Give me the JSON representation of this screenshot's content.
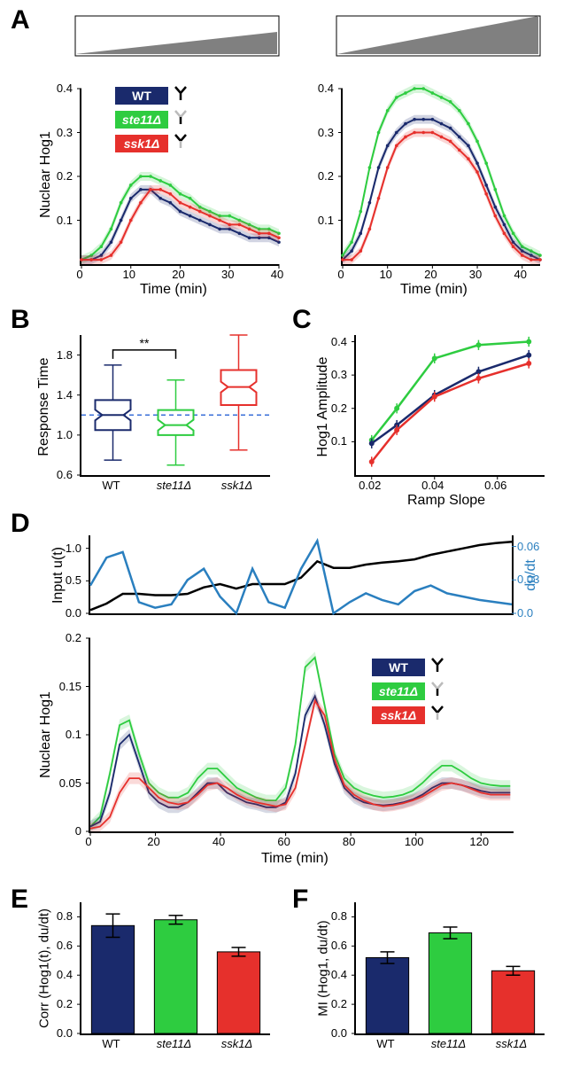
{
  "colors": {
    "wt": "#1a2a6c",
    "ste11": "#2ecc40",
    "ssk1": "#e6302c",
    "black": "#000000",
    "dudt": "#2a7fbf",
    "ramp_fill": "#808080",
    "grid": "#ffffff",
    "dash": "#3a6fd8"
  },
  "panel_labels": {
    "A": "A",
    "B": "B",
    "C": "C",
    "D": "D",
    "E": "E",
    "F": "F"
  },
  "legend": {
    "wt": "WT",
    "ste11": "ste11Δ",
    "ssk1": "ssk1Δ"
  },
  "panelA": {
    "ylabel": "Nuclear Hog1",
    "xlabel": "Time (min)",
    "ylim": [
      0,
      0.4
    ],
    "yticks": [
      0.1,
      0.2,
      0.3,
      0.4
    ],
    "xlim": [
      0,
      40
    ],
    "xticks": [
      0,
      10,
      20,
      30,
      40
    ],
    "ramp_left": {
      "start": 0.05,
      "end": 0.6
    },
    "ramp_right": {
      "start": 0.05,
      "end": 1.0
    },
    "left": {
      "x": [
        0,
        2,
        4,
        6,
        8,
        10,
        12,
        14,
        16,
        18,
        20,
        22,
        24,
        26,
        28,
        30,
        32,
        34,
        36,
        38,
        40
      ],
      "wt": [
        0.01,
        0.01,
        0.02,
        0.05,
        0.1,
        0.15,
        0.17,
        0.17,
        0.15,
        0.14,
        0.12,
        0.11,
        0.1,
        0.09,
        0.08,
        0.08,
        0.07,
        0.06,
        0.06,
        0.06,
        0.05
      ],
      "ste11": [
        0.01,
        0.02,
        0.04,
        0.08,
        0.14,
        0.18,
        0.2,
        0.2,
        0.19,
        0.18,
        0.16,
        0.15,
        0.13,
        0.12,
        0.11,
        0.11,
        0.1,
        0.09,
        0.08,
        0.08,
        0.07
      ],
      "ssk1": [
        0.01,
        0.01,
        0.01,
        0.02,
        0.05,
        0.1,
        0.14,
        0.17,
        0.17,
        0.16,
        0.14,
        0.13,
        0.12,
        0.11,
        0.1,
        0.09,
        0.09,
        0.08,
        0.07,
        0.07,
        0.06
      ]
    },
    "right": {
      "x": [
        0,
        2,
        4,
        6,
        8,
        10,
        12,
        14,
        16,
        18,
        20,
        22,
        24,
        26,
        28,
        30,
        32,
        34,
        36,
        38,
        40,
        42,
        44
      ],
      "wt": [
        0.01,
        0.03,
        0.07,
        0.14,
        0.22,
        0.27,
        0.3,
        0.32,
        0.33,
        0.33,
        0.33,
        0.32,
        0.31,
        0.29,
        0.27,
        0.23,
        0.18,
        0.13,
        0.09,
        0.05,
        0.03,
        0.02,
        0.01
      ],
      "ste11": [
        0.02,
        0.05,
        0.12,
        0.22,
        0.3,
        0.35,
        0.38,
        0.39,
        0.4,
        0.4,
        0.39,
        0.38,
        0.37,
        0.35,
        0.32,
        0.28,
        0.23,
        0.17,
        0.11,
        0.07,
        0.04,
        0.03,
        0.02
      ],
      "ssk1": [
        0.01,
        0.01,
        0.03,
        0.08,
        0.15,
        0.22,
        0.27,
        0.29,
        0.3,
        0.3,
        0.3,
        0.29,
        0.28,
        0.26,
        0.24,
        0.21,
        0.16,
        0.11,
        0.07,
        0.04,
        0.02,
        0.01,
        0.01
      ]
    }
  },
  "panelB": {
    "ylabel": "Response Time",
    "ylim": [
      0.6,
      2.0
    ],
    "yticks": [
      0.6,
      1.0,
      1.4,
      1.8
    ],
    "categories": [
      "WT",
      "ste11Δ",
      "ssk1Δ"
    ],
    "boxes": {
      "WT": {
        "whisker_lo": 0.75,
        "q1": 1.05,
        "med": 1.2,
        "q3": 1.35,
        "whisker_hi": 1.7,
        "color": "#1a2a6c"
      },
      "ste11": {
        "whisker_lo": 0.7,
        "q1": 1.0,
        "med": 1.1,
        "q3": 1.25,
        "whisker_hi": 1.55,
        "color": "#2ecc40"
      },
      "ssk1": {
        "whisker_lo": 0.85,
        "q1": 1.3,
        "med": 1.48,
        "q3": 1.65,
        "whisker_hi": 2.0,
        "color": "#e6302c"
      }
    },
    "dash_y": 1.2,
    "sig": "**"
  },
  "panelC": {
    "ylabel": "Hog1 Amplitude",
    "xlabel": "Ramp Slope",
    "xlim": [
      0.015,
      0.075
    ],
    "xticks": [
      0.02,
      0.04,
      0.06
    ],
    "ylim": [
      0.0,
      0.42
    ],
    "yticks": [
      0.1,
      0.2,
      0.3,
      0.4
    ],
    "x": [
      0.02,
      0.028,
      0.04,
      0.054,
      0.07
    ],
    "wt": [
      0.095,
      0.15,
      0.24,
      0.31,
      0.36
    ],
    "ste11": [
      0.105,
      0.2,
      0.35,
      0.39,
      0.4
    ],
    "ssk1": [
      0.04,
      0.135,
      0.235,
      0.29,
      0.335
    ],
    "err": 0.015
  },
  "panelD": {
    "ylabel_top": "Input u(t)",
    "ylabel_top_r": "du/dt",
    "ylabel_bot": "Nuclear Hog1",
    "xlabel": "Time (min)",
    "xlim": [
      0,
      130
    ],
    "xticks": [
      0,
      20,
      40,
      60,
      80,
      100,
      120
    ],
    "top_ylim_l": [
      0,
      1.2
    ],
    "top_yticks_l": [
      0,
      0.5,
      1.0
    ],
    "top_ylim_r": [
      0,
      0.07
    ],
    "top_yticks_r": [
      0.0,
      0.03,
      0.06
    ],
    "bot_ylim": [
      0,
      0.2
    ],
    "bot_yticks": [
      0.0,
      0.05,
      0.1,
      0.15,
      0.2
    ],
    "top_x": [
      0,
      5,
      10,
      15,
      20,
      25,
      30,
      35,
      40,
      45,
      50,
      55,
      60,
      65,
      70,
      75,
      80,
      85,
      90,
      95,
      100,
      105,
      110,
      115,
      120,
      125,
      130
    ],
    "input_u": [
      0.05,
      0.15,
      0.3,
      0.3,
      0.28,
      0.28,
      0.3,
      0.4,
      0.45,
      0.38,
      0.45,
      0.45,
      0.45,
      0.55,
      0.8,
      0.7,
      0.7,
      0.75,
      0.78,
      0.8,
      0.83,
      0.9,
      0.95,
      1.0,
      1.05,
      1.08,
      1.1
    ],
    "dudt": [
      0.025,
      0.05,
      0.055,
      0.01,
      0.005,
      0.008,
      0.03,
      0.04,
      0.015,
      0.0,
      0.04,
      0.01,
      0.005,
      0.04,
      0.065,
      0.0,
      0.01,
      0.018,
      0.012,
      0.008,
      0.02,
      0.025,
      0.018,
      0.015,
      0.012,
      0.01,
      0.008
    ],
    "bot_x": [
      0,
      3,
      6,
      9,
      12,
      15,
      18,
      21,
      24,
      27,
      30,
      33,
      36,
      39,
      42,
      45,
      48,
      51,
      54,
      57,
      60,
      63,
      66,
      69,
      72,
      75,
      78,
      81,
      84,
      87,
      90,
      93,
      96,
      99,
      102,
      105,
      108,
      111,
      114,
      117,
      120,
      123,
      126,
      129
    ],
    "wt": [
      0.005,
      0.01,
      0.04,
      0.09,
      0.1,
      0.07,
      0.04,
      0.03,
      0.025,
      0.025,
      0.03,
      0.04,
      0.05,
      0.05,
      0.04,
      0.035,
      0.03,
      0.028,
      0.025,
      0.025,
      0.03,
      0.06,
      0.12,
      0.14,
      0.11,
      0.07,
      0.045,
      0.035,
      0.03,
      0.028,
      0.027,
      0.028,
      0.03,
      0.033,
      0.038,
      0.045,
      0.05,
      0.05,
      0.048,
      0.045,
      0.042,
      0.04,
      0.04,
      0.04
    ],
    "ste11": [
      0.005,
      0.015,
      0.06,
      0.11,
      0.115,
      0.08,
      0.05,
      0.04,
      0.035,
      0.035,
      0.04,
      0.055,
      0.065,
      0.065,
      0.055,
      0.045,
      0.04,
      0.035,
      0.032,
      0.032,
      0.045,
      0.09,
      0.17,
      0.18,
      0.13,
      0.08,
      0.055,
      0.045,
      0.04,
      0.037,
      0.035,
      0.036,
      0.038,
      0.042,
      0.05,
      0.06,
      0.068,
      0.068,
      0.062,
      0.055,
      0.05,
      0.048,
      0.047,
      0.047
    ],
    "ssk1": [
      0.003,
      0.005,
      0.015,
      0.04,
      0.055,
      0.055,
      0.045,
      0.035,
      0.03,
      0.028,
      0.03,
      0.038,
      0.048,
      0.05,
      0.045,
      0.038,
      0.033,
      0.03,
      0.028,
      0.026,
      0.028,
      0.045,
      0.09,
      0.135,
      0.12,
      0.075,
      0.048,
      0.038,
      0.032,
      0.028,
      0.026,
      0.027,
      0.029,
      0.032,
      0.036,
      0.042,
      0.048,
      0.05,
      0.048,
      0.044,
      0.04,
      0.038,
      0.038,
      0.038
    ]
  },
  "panelE": {
    "ylabel": "Corr (Hog1(t), du/dt)",
    "ylim": [
      0,
      0.9
    ],
    "yticks": [
      0,
      0.2,
      0.4,
      0.6,
      0.8
    ],
    "categories": [
      "WT",
      "ste11Δ",
      "ssk1Δ"
    ],
    "values": [
      0.74,
      0.78,
      0.56
    ],
    "err": [
      0.08,
      0.03,
      0.03
    ]
  },
  "panelF": {
    "ylabel": "MI (Hog1, du/dt)",
    "ylim": [
      0,
      0.9
    ],
    "yticks": [
      0,
      0.2,
      0.4,
      0.6,
      0.8
    ],
    "categories": [
      "WT",
      "ste11Δ",
      "ssk1Δ"
    ],
    "values": [
      0.52,
      0.69,
      0.43
    ],
    "err": [
      0.04,
      0.04,
      0.03
    ]
  }
}
